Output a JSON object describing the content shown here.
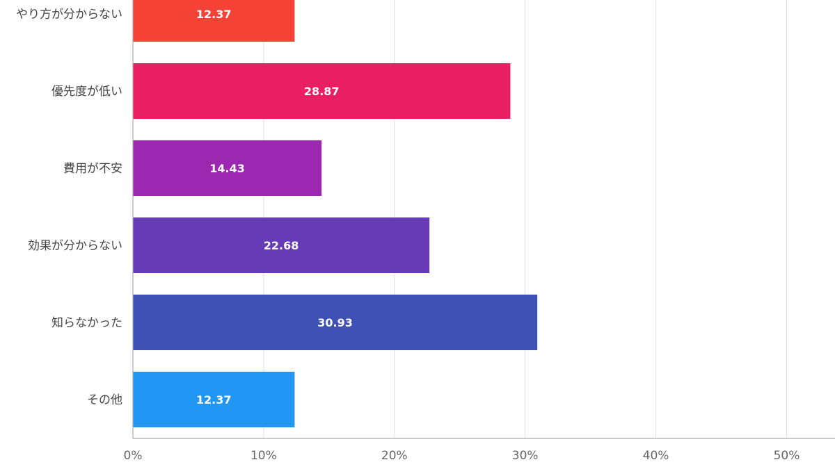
{
  "chart_data": {
    "type": "bar",
    "orientation": "horizontal",
    "categories": [
      "やり方が分からない",
      "優先度が低い",
      "費用が不安",
      "効果が分からない",
      "知らなかった",
      "その他"
    ],
    "values": [
      12.37,
      28.87,
      14.43,
      22.68,
      30.93,
      12.37
    ],
    "value_labels": [
      "12.37",
      "28.87",
      "14.43",
      "22.68",
      "30.93",
      "12.37"
    ],
    "bar_colors": [
      "#f44336",
      "#e91e63",
      "#9c27b0",
      "#673ab7",
      "#3f51b5",
      "#2196f3"
    ],
    "xlim": [
      0,
      53.7
    ],
    "x_ticks": [
      0,
      10,
      20,
      30,
      40,
      50
    ],
    "x_tick_labels": [
      "0%",
      "10%",
      "20%",
      "30%",
      "40%",
      "50%"
    ],
    "grid": true,
    "grid_color": "#e0e0e0",
    "axis_color": "#aaaaaa",
    "title": "",
    "xlabel": "",
    "ylabel": ""
  }
}
